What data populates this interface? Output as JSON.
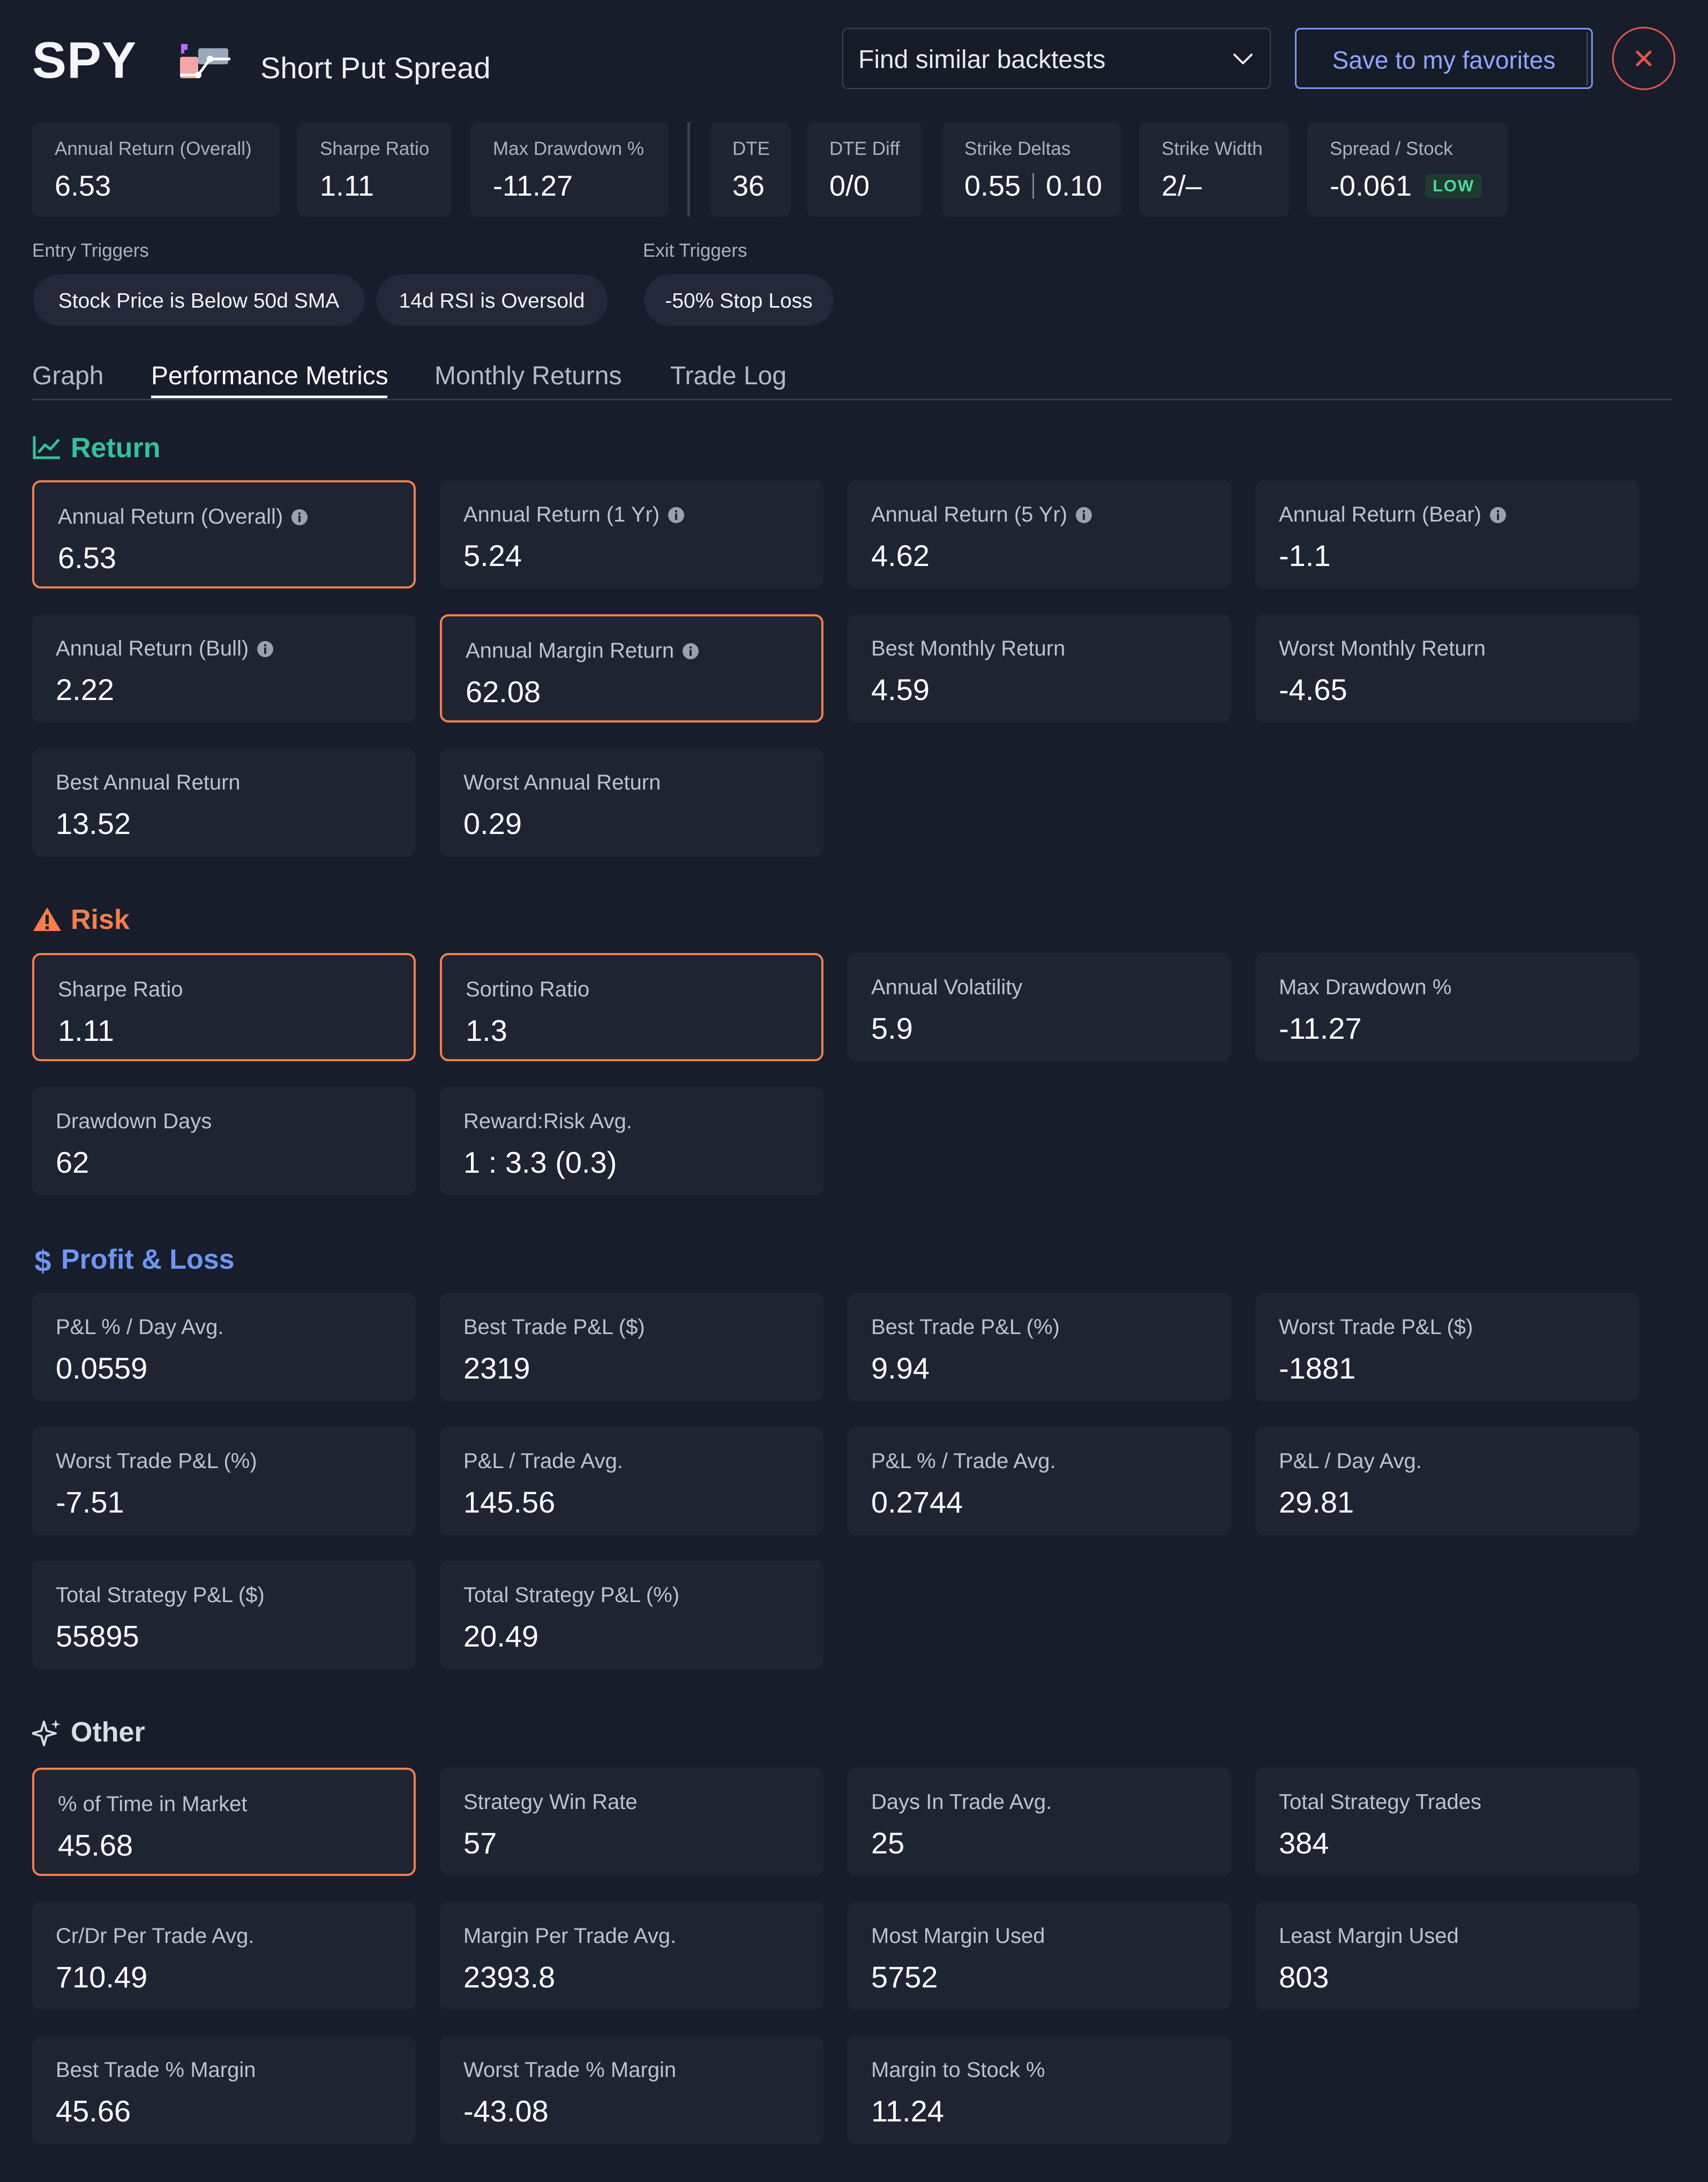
{
  "header": {
    "ticker": "SPY",
    "strategy_name": "Short Put Spread",
    "find_similar": "Find similar backtests",
    "save_favorites": "Save to my favorites"
  },
  "summary": {
    "annual_return_label": "Annual Return (Overall)",
    "annual_return_value": "6.53",
    "sharpe_label": "Sharpe Ratio",
    "sharpe_value": "1.11",
    "max_dd_label": "Max Drawdown %",
    "max_dd_value": "-11.27",
    "dte_label": "DTE",
    "dte_value": "36",
    "dte_diff_label": "DTE Diff",
    "dte_diff_value": "0/0",
    "strike_deltas_label": "Strike Deltas",
    "strike_delta_1": "0.55",
    "strike_delta_2": "0.10",
    "strike_width_label": "Strike Width",
    "strike_width_value": "2/–",
    "spread_stock_label": "Spread / Stock",
    "spread_stock_value": "-0.061",
    "spread_stock_badge": "LOW"
  },
  "triggers": {
    "entry_heading": "Entry Triggers",
    "entry": [
      "Stock Price is Below 50d SMA",
      "14d RSI is Oversold"
    ],
    "exit_heading": "Exit Triggers",
    "exit": [
      "-50% Stop Loss"
    ]
  },
  "tabs": [
    "Graph",
    "Performance Metrics",
    "Monthly Returns",
    "Trade Log"
  ],
  "colors": {
    "return": "#34c29a",
    "risk": "#f27f4d",
    "pnl": "#6f95f5",
    "other": "#d9dce3",
    "highlight": "#f27f4d"
  },
  "sections": {
    "return": {
      "title": "Return",
      "icon": "line-chart-icon",
      "cards": [
        {
          "label": "Annual Return (Overall)",
          "value": "6.53"
        },
        {
          "label": "Annual Return (1 Yr)",
          "value": "5.24"
        },
        {
          "label": "Annual Return (5 Yr)",
          "value": "4.62"
        },
        {
          "label": "Annual Return (Bear)",
          "value": "-1.1"
        },
        {
          "label": "Annual Return (Bull)",
          "value": "2.22"
        },
        {
          "label": "Annual Margin Return",
          "value": "62.08"
        },
        {
          "label": "Best Monthly Return",
          "value": "4.59"
        },
        {
          "label": "Worst Monthly Return",
          "value": "-4.65"
        },
        {
          "label": "Best Annual Return",
          "value": "13.52"
        },
        {
          "label": "Worst Annual Return",
          "value": "0.29"
        }
      ]
    },
    "risk": {
      "title": "Risk",
      "icon": "warning-icon",
      "cards": [
        {
          "label": "Sharpe Ratio",
          "value": "1.11"
        },
        {
          "label": "Sortino Ratio",
          "value": "1.3"
        },
        {
          "label": "Annual Volatility",
          "value": "5.9"
        },
        {
          "label": "Max Drawdown %",
          "value": "-11.27"
        },
        {
          "label": "Drawdown Days",
          "value": "62"
        },
        {
          "label": "Reward:Risk Avg.",
          "value": "1 : 3.3 (0.3)"
        }
      ]
    },
    "pnl": {
      "title": "Profit & Loss",
      "icon": "dollar-icon",
      "cards": [
        {
          "label": "P&L % / Day Avg.",
          "value": "0.0559"
        },
        {
          "label": "Best Trade P&L ($)",
          "value": "2319"
        },
        {
          "label": "Best Trade P&L (%)",
          "value": "9.94"
        },
        {
          "label": "Worst Trade P&L ($)",
          "value": "-1881"
        },
        {
          "label": "Worst Trade P&L (%)",
          "value": "-7.51"
        },
        {
          "label": "P&L / Trade Avg.",
          "value": "145.56"
        },
        {
          "label": "P&L % / Trade Avg.",
          "value": "0.2744"
        },
        {
          "label": "P&L / Day Avg.",
          "value": "29.81"
        },
        {
          "label": "Total Strategy P&L ($)",
          "value": "55895"
        },
        {
          "label": "Total Strategy P&L (%)",
          "value": "20.49"
        }
      ]
    },
    "other": {
      "title": "Other",
      "icon": "sparkle-icon",
      "cards": [
        {
          "label": "% of Time in Market",
          "value": "45.68"
        },
        {
          "label": "Strategy Win Rate",
          "value": "57"
        },
        {
          "label": "Days In Trade Avg.",
          "value": "25"
        },
        {
          "label": "Total Strategy Trades",
          "value": "384"
        },
        {
          "label": "Cr/Dr Per Trade Avg.",
          "value": "710.49"
        },
        {
          "label": "Margin Per Trade Avg.",
          "value": "2393.8"
        },
        {
          "label": "Most Margin Used",
          "value": "5752"
        },
        {
          "label": "Least Margin Used",
          "value": "803"
        },
        {
          "label": "Best Trade % Margin",
          "value": "45.66"
        },
        {
          "label": "Worst Trade % Margin",
          "value": "-43.08"
        },
        {
          "label": "Margin to Stock %",
          "value": "11.24"
        }
      ]
    }
  }
}
